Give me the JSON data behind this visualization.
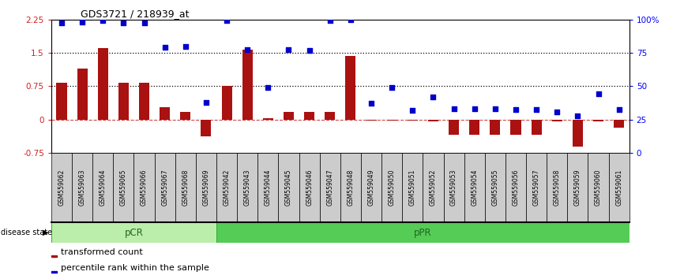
{
  "title": "GDS3721 / 218939_at",
  "samples": [
    "GSM559062",
    "GSM559063",
    "GSM559064",
    "GSM559065",
    "GSM559066",
    "GSM559067",
    "GSM559068",
    "GSM559069",
    "GSM559042",
    "GSM559043",
    "GSM559044",
    "GSM559045",
    "GSM559046",
    "GSM559047",
    "GSM559048",
    "GSM559049",
    "GSM559050",
    "GSM559051",
    "GSM559052",
    "GSM559053",
    "GSM559054",
    "GSM559055",
    "GSM559056",
    "GSM559057",
    "GSM559058",
    "GSM559059",
    "GSM559060",
    "GSM559061"
  ],
  "transformed_count": [
    0.82,
    1.15,
    1.6,
    0.83,
    0.82,
    0.27,
    0.17,
    -0.38,
    0.75,
    1.58,
    0.03,
    0.17,
    0.18,
    0.18,
    1.43,
    -0.03,
    -0.03,
    -0.03,
    -0.04,
    -0.35,
    -0.35,
    -0.35,
    -0.35,
    -0.35,
    -0.04,
    -0.6,
    -0.04,
    -0.18
  ],
  "percentile_rank": [
    2.18,
    2.2,
    2.22,
    2.18,
    2.18,
    1.62,
    1.65,
    0.38,
    2.22,
    1.57,
    0.73,
    1.57,
    1.55,
    2.23,
    2.25,
    0.37,
    0.73,
    0.2,
    0.5,
    0.25,
    0.25,
    0.25,
    0.22,
    0.22,
    0.17,
    0.08,
    0.58,
    0.22
  ],
  "pCR_count": 8,
  "pPR_count": 20,
  "bar_color": "#aa1111",
  "dot_color": "#0000cc",
  "ylim_left": [
    -0.75,
    2.25
  ],
  "yticks_left": [
    -0.75,
    0.0,
    0.75,
    1.5,
    2.25
  ],
  "ytick_labels_left": [
    "-0.75",
    "0",
    "0.75",
    "1.5",
    "2.25"
  ],
  "yticks_right": [
    0,
    25,
    50,
    75,
    100
  ],
  "ytick_labels_right": [
    "0",
    "25",
    "50",
    "75",
    "100%"
  ],
  "dotted_hlines": [
    0.75,
    1.5
  ],
  "pCR_color": "#bbeeaa",
  "pPR_color": "#55cc55",
  "disease_state_label": "disease state",
  "legend_bar_label": "transformed count",
  "legend_dot_label": "percentile rank within the sample"
}
